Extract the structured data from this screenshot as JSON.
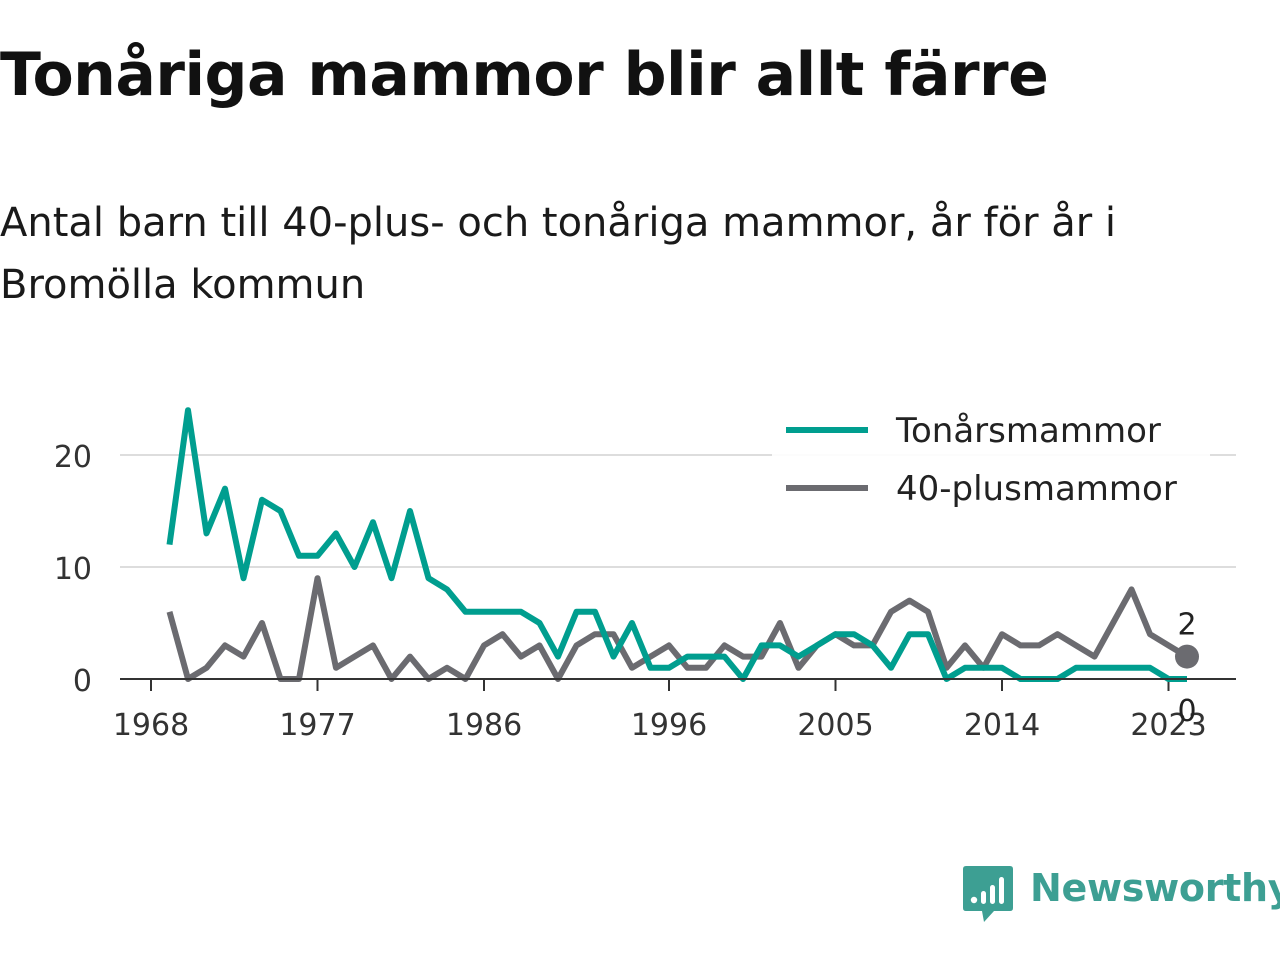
{
  "title": "Tonåriga mammor blir allt färre",
  "subtitle": "Antal barn till 40-plus- och tonåriga mammor, år för år i Bromölla kommun",
  "brand": {
    "name": "Newsworthy",
    "icon": "newsworthy-logo-icon",
    "color": "#3d9f93"
  },
  "chart_data": {
    "type": "line",
    "title": "Tonåriga mammor blir allt färre",
    "subtitle": "Antal barn till 40-plus- och tonåriga mammor, år för år i Bromölla kommun",
    "xlabel": "",
    "ylabel": "",
    "x_ticks": [
      1968,
      1977,
      1986,
      1996,
      2005,
      2014,
      2023
    ],
    "y_ticks": [
      0,
      10,
      20
    ],
    "xlim": [
      1967,
      2025
    ],
    "ylim": [
      0,
      25
    ],
    "grid": true,
    "legend_position": "top-right",
    "x": [
      1969,
      1970,
      1971,
      1972,
      1973,
      1974,
      1975,
      1976,
      1977,
      1978,
      1979,
      1980,
      1981,
      1982,
      1983,
      1984,
      1985,
      1986,
      1987,
      1988,
      1989,
      1990,
      1991,
      1992,
      1993,
      1994,
      1995,
      1996,
      1997,
      1998,
      1999,
      2000,
      2001,
      2002,
      2003,
      2004,
      2005,
      2006,
      2007,
      2008,
      2009,
      2010,
      2011,
      2012,
      2013,
      2014,
      2015,
      2016,
      2017,
      2018,
      2019,
      2020,
      2021,
      2022,
      2023,
      2024
    ],
    "series": [
      {
        "name": "Tonårsmammor",
        "color": "#009e8f",
        "values": [
          12,
          24,
          13,
          17,
          9,
          16,
          15,
          11,
          11,
          13,
          10,
          14,
          9,
          15,
          9,
          8,
          6,
          6,
          6,
          6,
          5,
          2,
          6,
          6,
          2,
          5,
          1,
          1,
          2,
          2,
          2,
          0,
          3,
          3,
          2,
          3,
          4,
          4,
          3,
          1,
          4,
          4,
          0,
          1,
          1,
          1,
          0,
          0,
          0,
          1,
          1,
          1,
          1,
          1,
          0,
          0
        ],
        "end_label": "0"
      },
      {
        "name": "40-plusmammor",
        "color": "#6b6b70",
        "values": [
          6,
          0,
          1,
          3,
          2,
          5,
          0,
          0,
          9,
          1,
          2,
          3,
          0,
          2,
          0,
          1,
          0,
          3,
          4,
          2,
          3,
          0,
          3,
          4,
          4,
          1,
          2,
          3,
          1,
          1,
          3,
          2,
          2,
          5,
          1,
          3,
          4,
          3,
          3,
          6,
          7,
          6,
          1,
          3,
          1,
          4,
          3,
          3,
          4,
          3,
          2,
          5,
          8,
          4,
          3,
          2
        ],
        "end_label": "2"
      }
    ]
  }
}
